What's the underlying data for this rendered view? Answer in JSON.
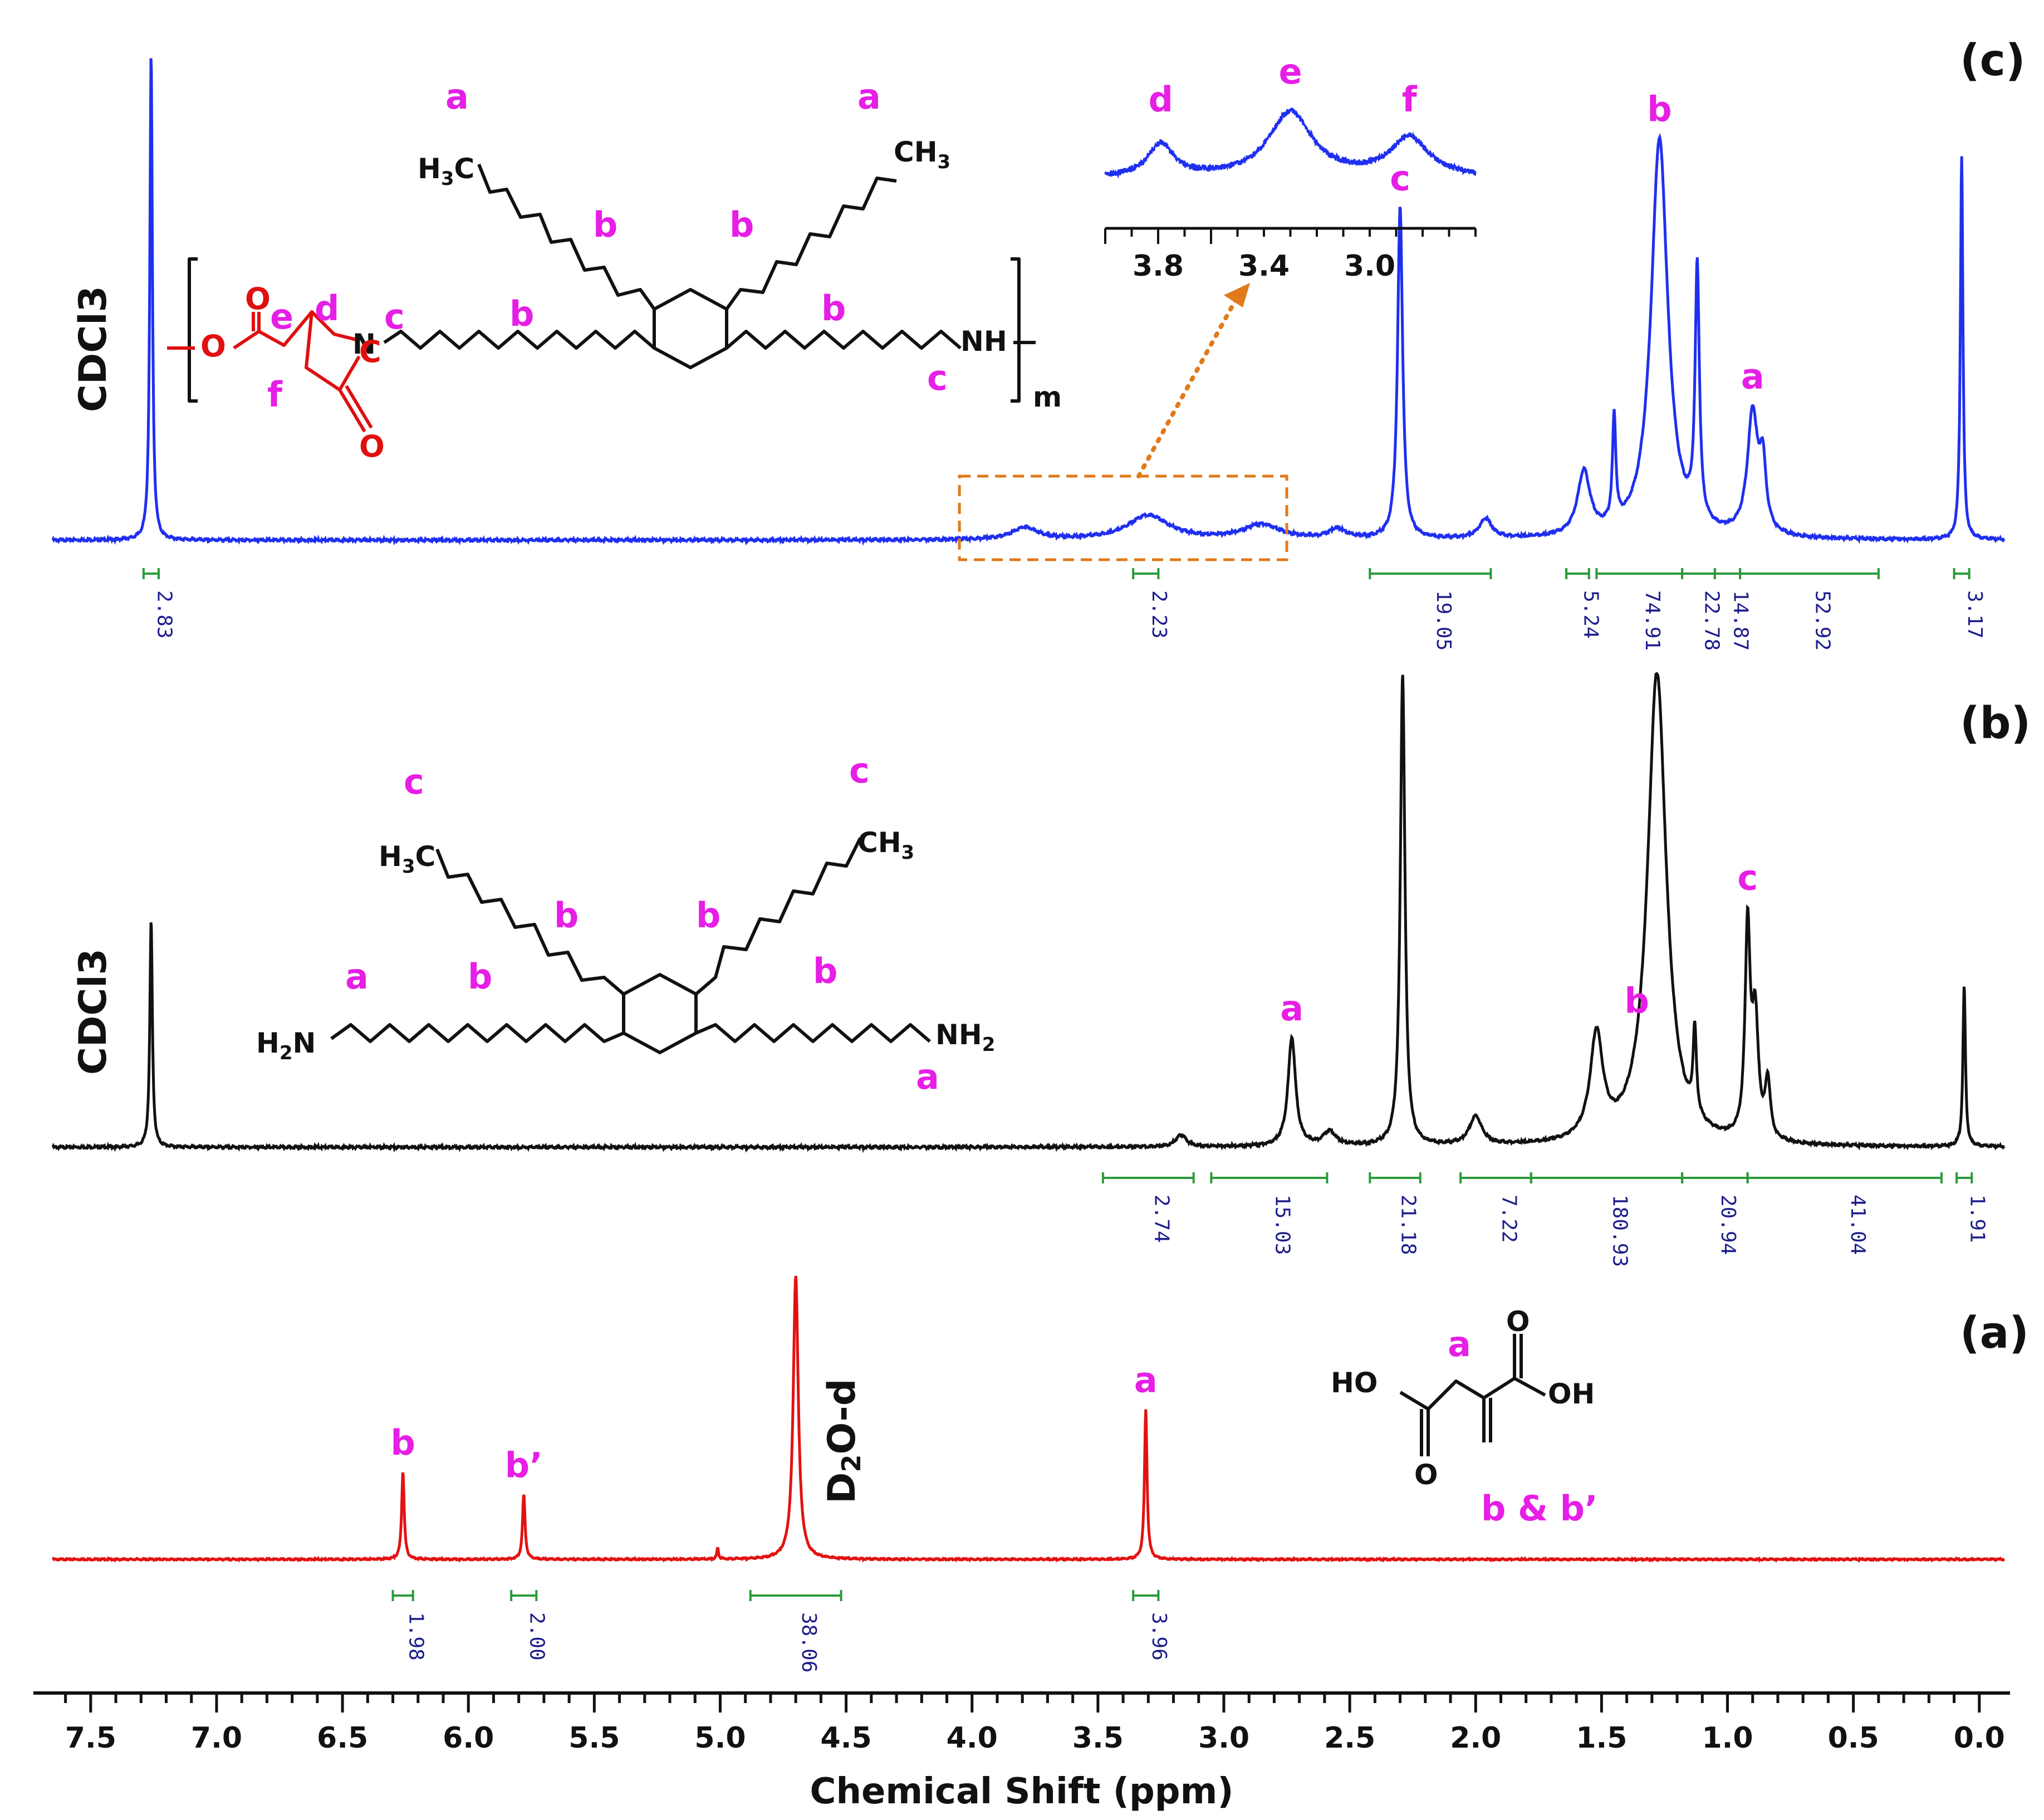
{
  "chart_data": {
    "type": "line",
    "xlabel": "Chemical Shift (ppm)",
    "xlim": [
      7.65,
      -0.1
    ],
    "x_reversed": true,
    "x_ticks": [
      "7.5",
      "7.0",
      "6.5",
      "6.0",
      "5.5",
      "5.0",
      "4.5",
      "4.0",
      "3.5",
      "3.0",
      "2.5",
      "2.0",
      "1.5",
      "1.0",
      "0.5",
      "0.0"
    ],
    "series": [
      {
        "id": "c",
        "label": "(c)",
        "color": "#1f2ff0",
        "solvent_label": "CDCl3",
        "peaks": [
          {
            "ppm": 7.26,
            "h": 1.0,
            "w": 0.006
          },
          {
            "ppm": 3.79,
            "h": 0.025,
            "w": 0.06
          },
          {
            "ppm": 3.3,
            "h": 0.05,
            "w": 0.1
          },
          {
            "ppm": 2.85,
            "h": 0.03,
            "w": 0.09
          },
          {
            "ppm": 2.55,
            "h": 0.02,
            "w": 0.04
          },
          {
            "ppm": 2.3,
            "h": 0.68,
            "w": 0.012
          },
          {
            "ppm": 1.96,
            "h": 0.04,
            "w": 0.03
          },
          {
            "ppm": 1.57,
            "h": 0.13,
            "w": 0.03
          },
          {
            "ppm": 1.45,
            "h": 0.22,
            "w": 0.008
          },
          {
            "ppm": 1.27,
            "h": 0.82,
            "w": 0.04
          },
          {
            "ppm": 1.12,
            "h": 0.52,
            "w": 0.01
          },
          {
            "ppm": 0.9,
            "h": 0.25,
            "w": 0.025
          },
          {
            "ppm": 0.86,
            "h": 0.13,
            "w": 0.015
          },
          {
            "ppm": 0.07,
            "h": 0.79,
            "w": 0.006
          }
        ],
        "peak_labels": [
          {
            "text": "c",
            "ppm": 2.3
          },
          {
            "text": "b",
            "ppm": 1.27
          },
          {
            "text": "a",
            "ppm": 0.9
          }
        ],
        "integrals": [
          {
            "value": "2.83",
            "from": 7.29,
            "to": 7.23
          },
          {
            "value": "2.23",
            "from": 3.36,
            "to": 3.26
          },
          {
            "value": "19.05",
            "from": 2.42,
            "to": 1.94
          },
          {
            "value": "5.24",
            "from": 1.64,
            "to": 1.55
          },
          {
            "value": "74.91",
            "from": 1.52,
            "to": 1.18
          },
          {
            "value": "22.78",
            "from": 1.18,
            "to": 1.05
          },
          {
            "value": "14.87",
            "from": 1.05,
            "to": 0.95
          },
          {
            "value": "52.92",
            "from": 0.95,
            "to": 0.4
          },
          {
            "value": "3.17",
            "from": 0.1,
            "to": 0.04
          }
        ],
        "zoom_box_ppm": [
          4.05,
          2.75
        ],
        "inset": {
          "x_ticks": [
            "3.8",
            "3.4",
            "3.0"
          ],
          "xlim": [
            4.0,
            2.6
          ],
          "peak_labels": [
            {
              "text": "d",
              "ppm": 3.79
            },
            {
              "text": "e",
              "ppm": 3.3
            },
            {
              "text": "f",
              "ppm": 2.85
            }
          ]
        }
      },
      {
        "id": "b",
        "label": "(b)",
        "color": "#111111",
        "solvent_label": "CDCl3",
        "peaks": [
          {
            "ppm": 7.26,
            "h": 0.48,
            "w": 0.006
          },
          {
            "ppm": 3.17,
            "h": 0.025,
            "w": 0.025
          },
          {
            "ppm": 2.73,
            "h": 0.23,
            "w": 0.018
          },
          {
            "ppm": 2.58,
            "h": 0.03,
            "w": 0.03
          },
          {
            "ppm": 2.29,
            "h": 1.0,
            "w": 0.011
          },
          {
            "ppm": 2.0,
            "h": 0.06,
            "w": 0.03
          },
          {
            "ppm": 1.52,
            "h": 0.22,
            "w": 0.03
          },
          {
            "ppm": 1.28,
            "h": 1.0,
            "w": 0.045
          },
          {
            "ppm": 1.13,
            "h": 0.18,
            "w": 0.008
          },
          {
            "ppm": 0.92,
            "h": 0.44,
            "w": 0.012
          },
          {
            "ppm": 0.89,
            "h": 0.25,
            "w": 0.015
          },
          {
            "ppm": 0.84,
            "h": 0.12,
            "w": 0.012
          },
          {
            "ppm": 0.06,
            "h": 0.34,
            "w": 0.006
          }
        ],
        "peak_labels": [
          {
            "text": "a",
            "ppm": 2.73
          },
          {
            "text": "b",
            "ppm": 1.36
          },
          {
            "text": "c",
            "ppm": 0.92
          }
        ],
        "integrals": [
          {
            "value": "2.74",
            "from": 3.48,
            "to": 3.12
          },
          {
            "value": "15.03",
            "from": 3.05,
            "to": 2.59
          },
          {
            "value": "21.18",
            "from": 2.42,
            "to": 2.22
          },
          {
            "value": "7.22",
            "from": 2.06,
            "to": 1.78
          },
          {
            "value": "180.93",
            "from": 1.78,
            "to": 1.18
          },
          {
            "value": "20.94",
            "from": 1.18,
            "to": 0.92
          },
          {
            "value": "41.04",
            "from": 0.92,
            "to": 0.15
          },
          {
            "value": "1.91",
            "from": 0.09,
            "to": 0.03
          }
        ]
      },
      {
        "id": "a",
        "label": "(a)",
        "color": "#e21212",
        "solvent_label": "D2O-d",
        "peaks": [
          {
            "ppm": 6.26,
            "h": 0.31,
            "w": 0.006
          },
          {
            "ppm": 5.78,
            "h": 0.23,
            "w": 0.006
          },
          {
            "ppm": 5.01,
            "h": 0.04,
            "w": 0.004
          },
          {
            "ppm": 4.7,
            "h": 1.0,
            "w": 0.012
          },
          {
            "ppm": 3.31,
            "h": 0.53,
            "w": 0.006
          }
        ],
        "peak_labels": [
          {
            "text": "b",
            "ppm": 6.26
          },
          {
            "text": "b’",
            "ppm": 5.78
          },
          {
            "text": "a",
            "ppm": 3.31
          }
        ],
        "integrals": [
          {
            "value": "1.98",
            "from": 6.3,
            "to": 6.22
          },
          {
            "value": "2.00",
            "from": 5.83,
            "to": 5.73
          },
          {
            "value": "38.06",
            "from": 4.88,
            "to": 4.52
          },
          {
            "value": "3.96",
            "from": 3.36,
            "to": 3.26
          }
        ]
      }
    ]
  },
  "structures": {
    "c": {
      "labels_black": [
        "a",
        "a",
        "b",
        "b",
        "b",
        "b",
        "c",
        "c"
      ],
      "ring_labels": [
        "e",
        "d",
        "f"
      ],
      "groups": [
        "H3C",
        "CH3",
        "N",
        "NH",
        "m",
        "O",
        "O",
        "O"
      ]
    },
    "b": {
      "labels": [
        "c",
        "c",
        "b",
        "b",
        "a",
        "b",
        "b",
        "a"
      ],
      "groups": [
        "H3C",
        "CH3",
        "H2N",
        "NH2"
      ]
    },
    "a": {
      "labels": [
        "a",
        "b & b’"
      ],
      "groups": [
        "HO",
        "OH",
        "O",
        "O"
      ]
    }
  }
}
